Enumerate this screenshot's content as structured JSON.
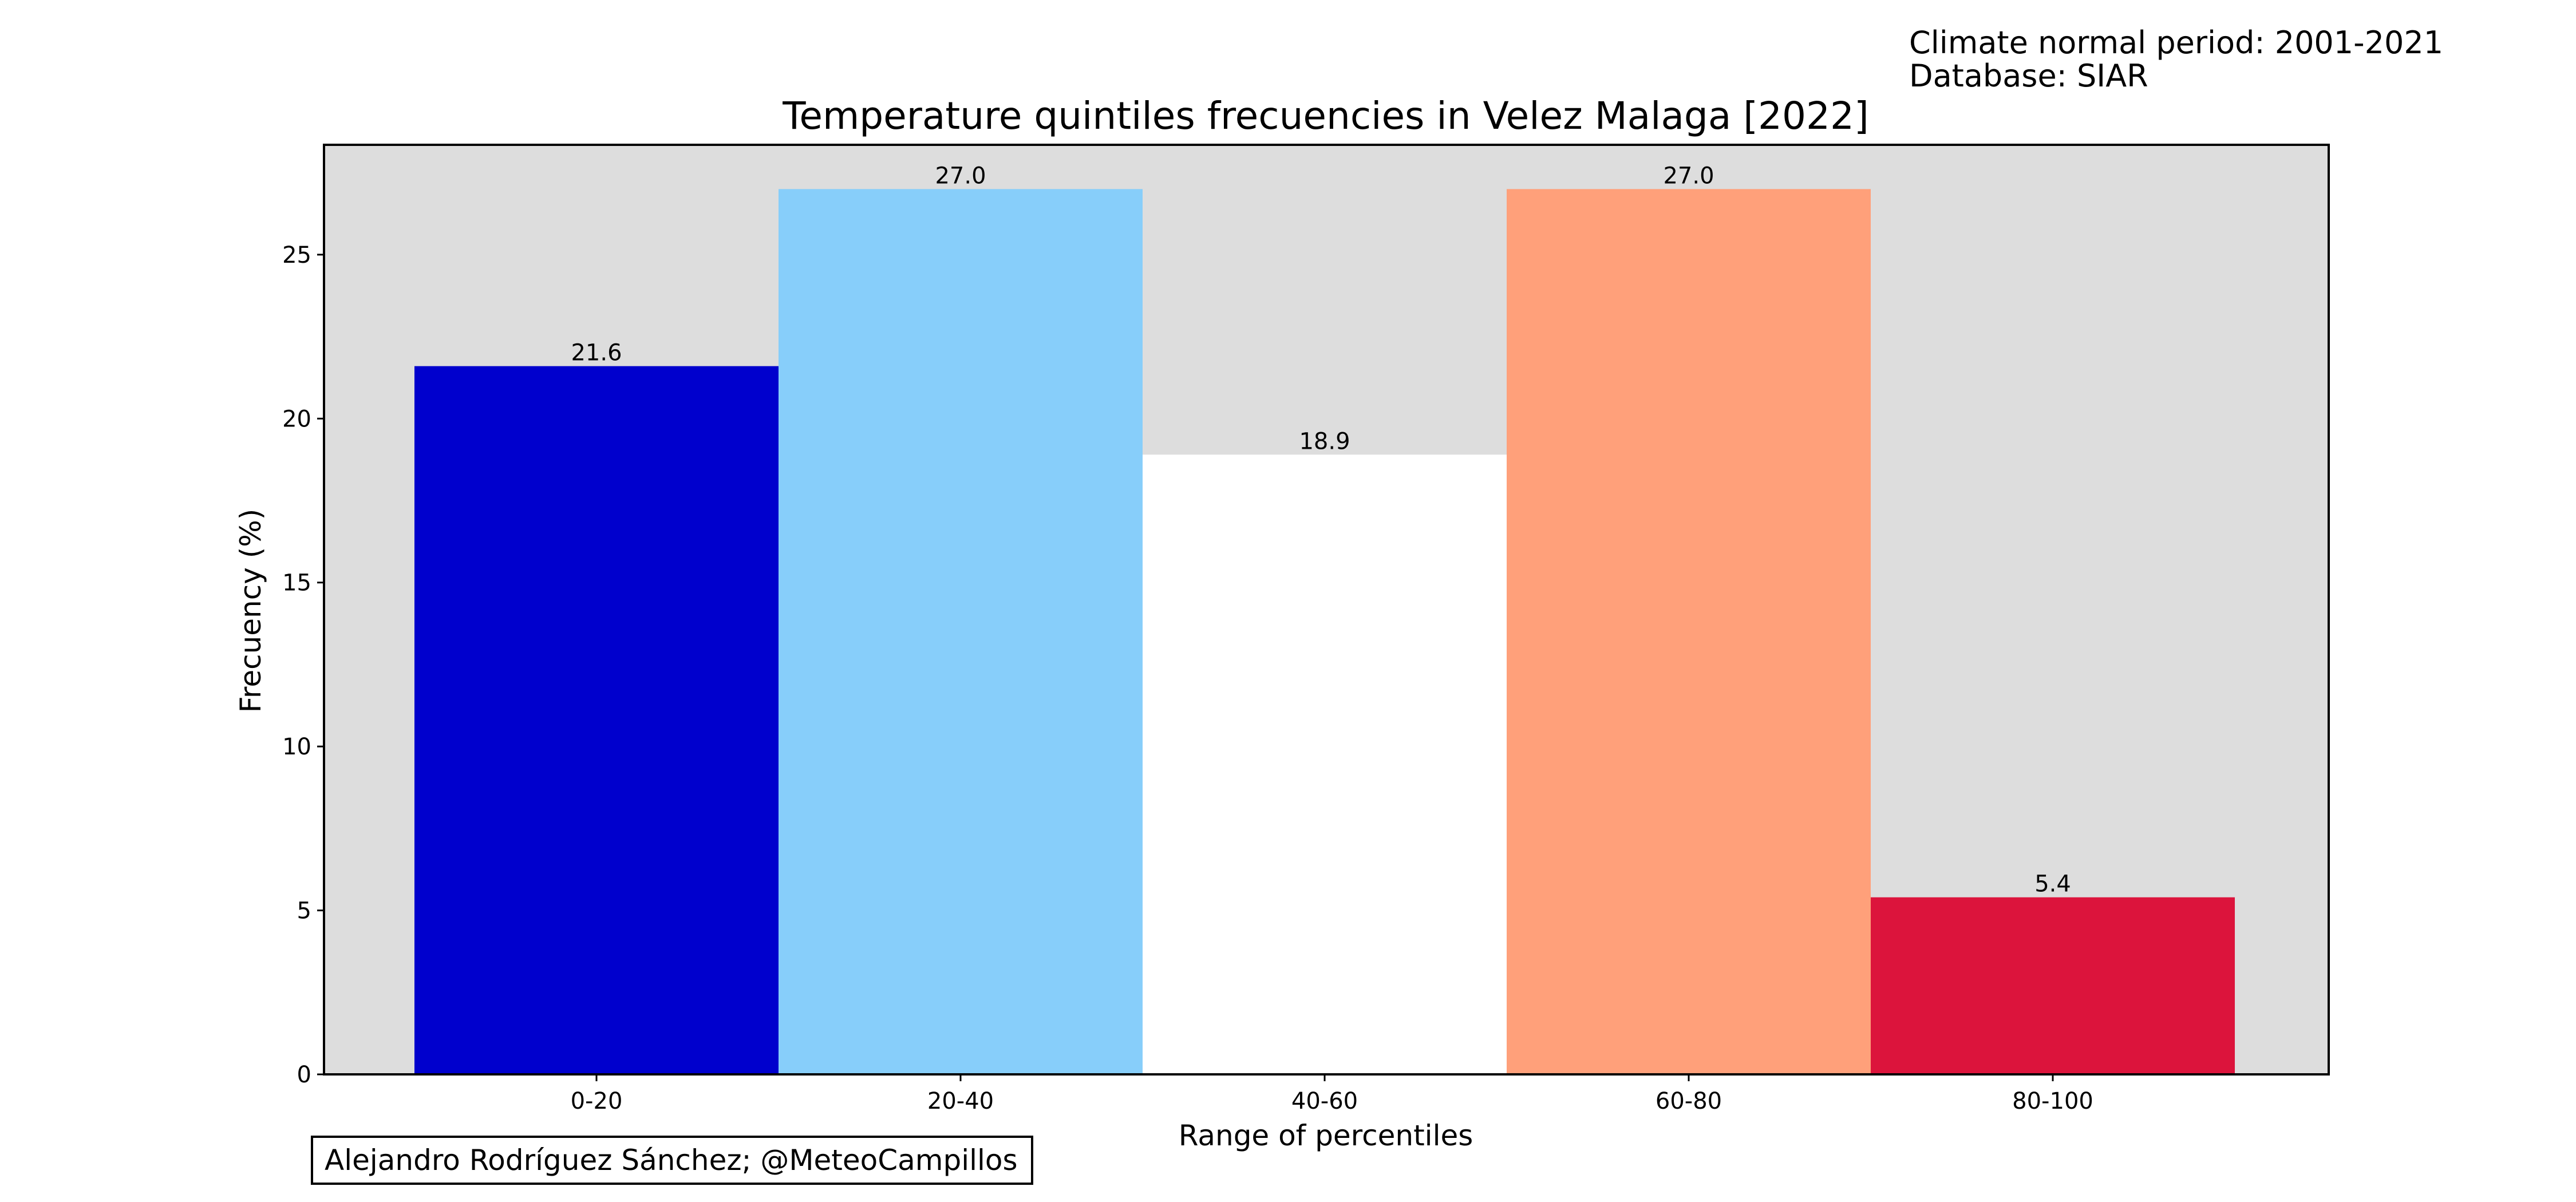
{
  "meta": {
    "period_line": "Climate normal period: 2001-2021",
    "database_line": "Database: SIAR"
  },
  "credit": "Alejandro Rodríguez Sánchez; @MeteoCampillos",
  "chart_data": {
    "type": "bar",
    "title": "Temperature quintiles frecuencies in Velez Malaga [2022]",
    "xlabel": "Range of percentiles",
    "ylabel": "Frecuency (%)",
    "categories": [
      "0-20",
      "20-40",
      "40-60",
      "60-80",
      "80-100"
    ],
    "values": [
      21.6,
      27.0,
      18.9,
      27.0,
      5.4
    ],
    "value_labels": [
      "21.6",
      "27.0",
      "18.9",
      "27.0",
      "5.4"
    ],
    "colors": [
      "#0000CD",
      "#87CEFA",
      "#FFFFFF",
      "#FFA07A",
      "#DC143C"
    ],
    "plot_background": "#DDDDDD",
    "ylim": [
      0,
      28.35
    ],
    "yticks": [
      0,
      5,
      10,
      15,
      20,
      25
    ],
    "grid": false
  }
}
